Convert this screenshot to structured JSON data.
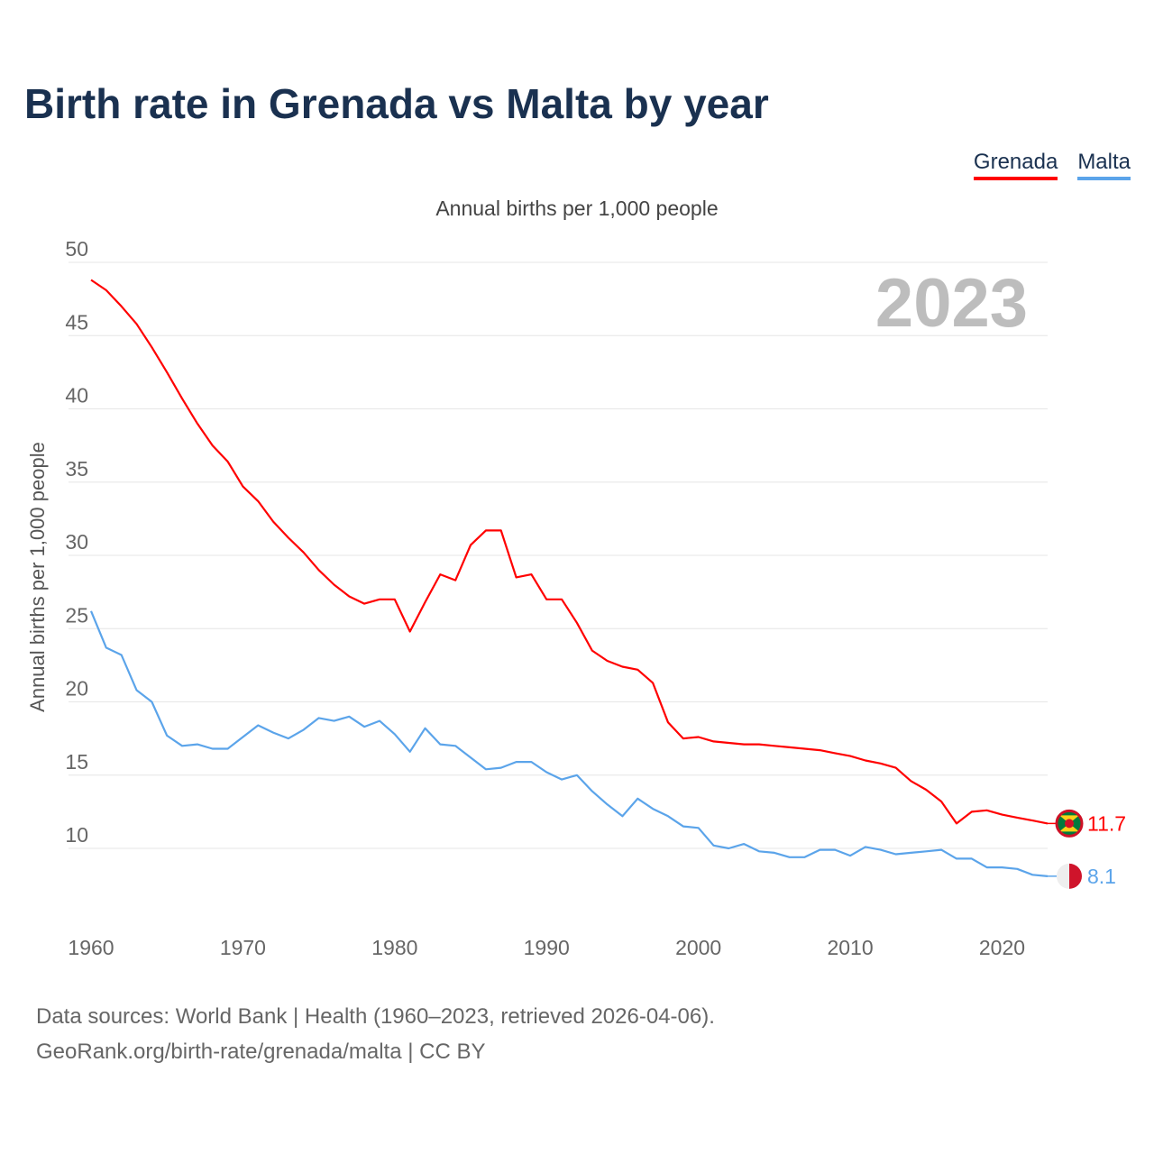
{
  "title": "Birth rate in Grenada vs Malta by year",
  "subtitle": "Annual births per 1,000 people",
  "footer": {
    "line1": "Data sources: World Bank | Health (1960–2023, retrieved 2026-04-06).",
    "line2": "GeoRank.org/birth-rate/grenada/malta | CC BY"
  },
  "chart_data": {
    "type": "line",
    "title": "Birth rate in Grenada vs Malta by year",
    "xlabel": "",
    "ylabel": "Annual births per 1,000 people",
    "xlim": [
      1960,
      2023
    ],
    "ylim": [
      5,
      50
    ],
    "yticks": [
      "10",
      "15",
      "20",
      "25",
      "30",
      "35",
      "40",
      "45",
      "50"
    ],
    "xticks": [
      "1960",
      "1970",
      "1980",
      "1990",
      "2000",
      "2010",
      "2020"
    ],
    "highlight_year": "2023",
    "legend_placement": "top-right",
    "grid": true,
    "x": [
      1960,
      1961,
      1962,
      1963,
      1964,
      1965,
      1966,
      1967,
      1968,
      1969,
      1970,
      1971,
      1972,
      1973,
      1974,
      1975,
      1976,
      1977,
      1978,
      1979,
      1980,
      1981,
      1982,
      1983,
      1984,
      1985,
      1986,
      1987,
      1988,
      1989,
      1990,
      1991,
      1992,
      1993,
      1994,
      1995,
      1996,
      1997,
      1998,
      1999,
      2000,
      2001,
      2002,
      2003,
      2004,
      2005,
      2006,
      2007,
      2008,
      2009,
      2010,
      2011,
      2012,
      2013,
      2014,
      2015,
      2016,
      2017,
      2018,
      2019,
      2020,
      2021,
      2022,
      2023
    ],
    "series": [
      {
        "name": "Grenada",
        "color": "#ff0000",
        "end_label": "11.7",
        "values": [
          48.8,
          48.1,
          47.0,
          45.8,
          44.2,
          42.5,
          40.7,
          39.0,
          37.5,
          36.4,
          34.7,
          33.7,
          32.3,
          31.2,
          30.2,
          29.0,
          28.0,
          27.2,
          26.7,
          27.0,
          27.0,
          24.8,
          26.8,
          28.7,
          28.3,
          30.7,
          31.7,
          31.7,
          28.5,
          28.7,
          27.0,
          27.0,
          25.4,
          23.5,
          22.8,
          22.4,
          22.2,
          21.3,
          18.6,
          17.5,
          17.6,
          17.3,
          17.2,
          17.1,
          17.1,
          17.0,
          16.9,
          16.8,
          16.7,
          16.5,
          16.3,
          16.0,
          15.8,
          15.5,
          14.6,
          14.0,
          13.2,
          11.7,
          12.5,
          12.6,
          12.3,
          12.1,
          11.9,
          11.7
        ]
      },
      {
        "name": "Malta",
        "color": "#5ba4ea",
        "end_label": "8.1",
        "values": [
          26.2,
          23.7,
          23.2,
          20.8,
          20.0,
          17.7,
          17.0,
          17.1,
          16.8,
          16.8,
          17.6,
          18.4,
          17.9,
          17.5,
          18.1,
          18.9,
          18.7,
          19.0,
          18.3,
          18.7,
          17.8,
          16.6,
          18.2,
          17.1,
          17.0,
          16.2,
          15.4,
          15.5,
          15.9,
          15.9,
          15.2,
          14.7,
          15.0,
          13.9,
          13.0,
          12.2,
          13.4,
          12.7,
          12.2,
          11.5,
          11.4,
          10.2,
          10.0,
          10.3,
          9.8,
          9.7,
          9.4,
          9.4,
          9.9,
          9.9,
          9.5,
          10.1,
          9.9,
          9.6,
          9.7,
          9.8,
          9.9,
          9.3,
          9.3,
          8.7,
          8.7,
          8.6,
          8.2,
          8.1
        ]
      }
    ]
  }
}
